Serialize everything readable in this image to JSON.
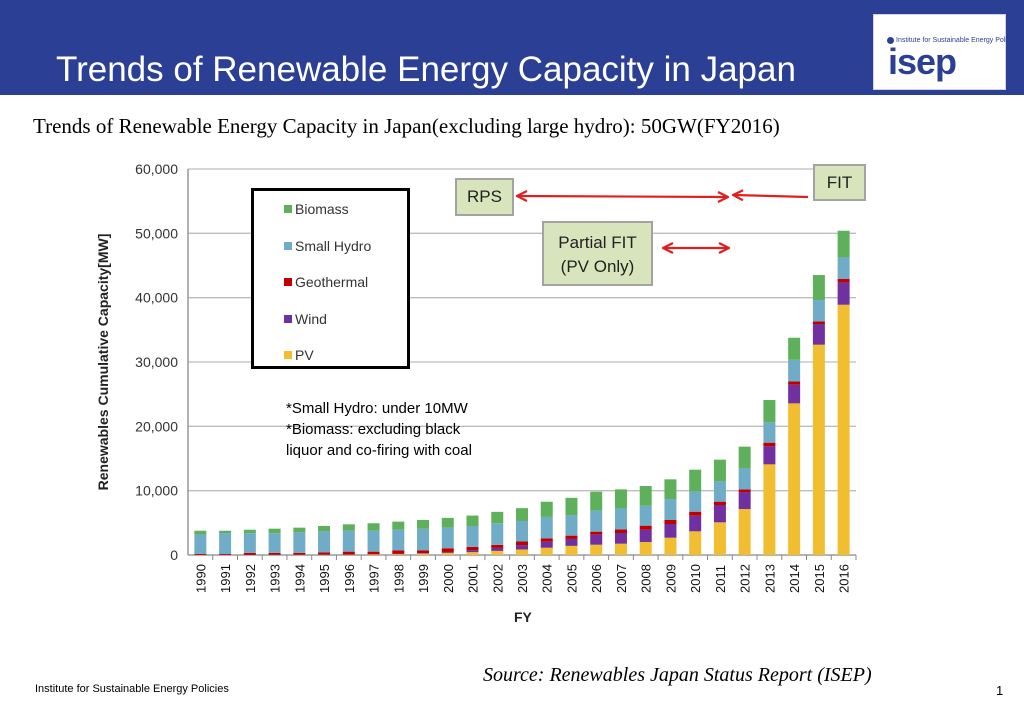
{
  "header": {
    "title": "Trends of Renewable Energy Capacity in Japan",
    "logo_small": "Institute for Sustainable Energy Policies",
    "logo_big": "isep"
  },
  "subtitle": "Trends of Renewable Energy Capacity in Japan(excluding large hydro): 50GW(FY2016)",
  "annotations": {
    "rps": "RPS",
    "fit": "FIT",
    "partial_fit_line1": "Partial FIT",
    "partial_fit_line2": "(PV Only)",
    "note": "*Small Hydro: under 10MW\n*Biomass: excluding black\nliquor and co-firing with coal"
  },
  "footer": {
    "source": "Source: Renewables Japan Status Report (ISEP)",
    "org": "Institute for Sustainable Energy Policies",
    "page": "1"
  },
  "chart_data": {
    "type": "bar",
    "stacked": true,
    "xlabel": "FY",
    "ylabel": "Renewables Cumulative Capacity[MW]",
    "ylim": [
      0,
      60000
    ],
    "yticks": [
      "0",
      "10,000",
      "20,000",
      "30,000",
      "40,000",
      "50,000",
      "60,000"
    ],
    "grid": true,
    "legend_position": "top-left",
    "categories": [
      "1990",
      "1991",
      "1992",
      "1993",
      "1994",
      "1995",
      "1996",
      "1997",
      "1998",
      "1999",
      "2000",
      "2001",
      "2002",
      "2003",
      "2004",
      "2005",
      "2006",
      "2007",
      "2008",
      "2009",
      "2010",
      "2011",
      "2012",
      "2013",
      "2014",
      "2015",
      "2016"
    ],
    "series": [
      {
        "name": "PV",
        "color": "#f0be30",
        "values": [
          10,
          10,
          20,
          30,
          40,
          40,
          60,
          90,
          130,
          210,
          330,
          450,
          640,
          860,
          1130,
          1420,
          1600,
          1760,
          2020,
          2690,
          3680,
          5080,
          7150,
          14090,
          23570,
          32690,
          38900
        ]
      },
      {
        "name": "Wind",
        "color": "#7030a0",
        "values": [
          0,
          0,
          0,
          0,
          0,
          10,
          10,
          20,
          40,
          80,
          140,
          310,
          460,
          680,
          930,
          1080,
          1560,
          1660,
          1920,
          2130,
          2430,
          2690,
          2640,
          2800,
          2900,
          3210,
          3470
        ]
      },
      {
        "name": "Geothermal",
        "color": "#c00000",
        "values": [
          140,
          140,
          310,
          300,
          300,
          370,
          450,
          410,
          560,
          440,
          580,
          500,
          470,
          560,
          510,
          510,
          470,
          570,
          620,
          620,
          620,
          520,
          410,
          570,
          520,
          410,
          530
        ]
      },
      {
        "name": "Small Hydro",
        "color": "#70acc8",
        "values": [
          3050,
          3250,
          3070,
          3070,
          3220,
          3250,
          3250,
          3250,
          3200,
          3360,
          3200,
          3250,
          3360,
          3190,
          3350,
          3200,
          3260,
          3310,
          3110,
          3260,
          3160,
          3160,
          3320,
          3160,
          3360,
          3320,
          3360
        ]
      },
      {
        "name": "Biomass",
        "color": "#5eb05a",
        "values": [
          570,
          370,
          530,
          690,
          690,
          840,
          1000,
          1160,
          1260,
          1360,
          1510,
          1620,
          1780,
          1990,
          2360,
          2670,
          2950,
          2900,
          3050,
          3060,
          3370,
          3370,
          3320,
          3470,
          3420,
          3880,
          4140
        ]
      }
    ],
    "legend_order": [
      "Biomass",
      "Small Hydro",
      "Geothermal",
      "Wind",
      "PV"
    ]
  },
  "colors": {
    "title_bar": "#2b3f95",
    "arrow": "#e02020",
    "tag_fill": "#d8e4bc"
  }
}
